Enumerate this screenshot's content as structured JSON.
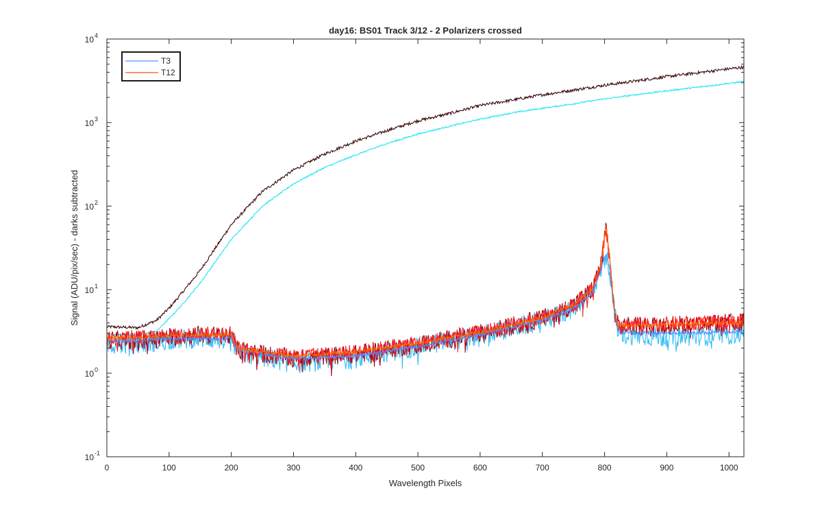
{
  "chart_data": {
    "type": "line",
    "title": "day16: BS01  Track 3/12 - 2 Polarizers crossed",
    "xlabel": "Wavelength Pixels",
    "ylabel": "Signal (ADU/pix/sec) - darks subtracted",
    "xlim": [
      0,
      1024
    ],
    "ylim": [
      0.1,
      10000
    ],
    "yscale": "log",
    "xticks": [
      0,
      100,
      200,
      300,
      400,
      500,
      600,
      700,
      800,
      900,
      1000
    ],
    "yticks": [
      0.1,
      1,
      10,
      100,
      1000,
      10000
    ],
    "ytick_labels": [
      {
        "base": "10",
        "exp": "-1"
      },
      {
        "base": "10",
        "exp": "0"
      },
      {
        "base": "10",
        "exp": "1"
      },
      {
        "base": "10",
        "exp": "2"
      },
      {
        "base": "10",
        "exp": "3"
      },
      {
        "base": "10",
        "exp": "4"
      }
    ],
    "grid": false,
    "legend_position": "top-left",
    "legend": [
      {
        "name": "T3",
        "color": "#4d94ff"
      },
      {
        "name": "T12",
        "color": "#e8590c"
      }
    ],
    "series": [
      {
        "name": "",
        "color": "#3b0a0a",
        "noise": 0.04,
        "points": [
          [
            0,
            3.6
          ],
          [
            50,
            3.5
          ],
          [
            80,
            4.3
          ],
          [
            100,
            6
          ],
          [
            120,
            9
          ],
          [
            150,
            17
          ],
          [
            200,
            60
          ],
          [
            250,
            150
          ],
          [
            300,
            270
          ],
          [
            350,
            420
          ],
          [
            400,
            600
          ],
          [
            450,
            800
          ],
          [
            500,
            1050
          ],
          [
            550,
            1280
          ],
          [
            600,
            1600
          ],
          [
            650,
            1850
          ],
          [
            700,
            2150
          ],
          [
            750,
            2450
          ],
          [
            800,
            2800
          ],
          [
            850,
            3150
          ],
          [
            900,
            3550
          ],
          [
            950,
            3950
          ],
          [
            1000,
            4400
          ],
          [
            1024,
            4600
          ]
        ]
      },
      {
        "name": "",
        "color": "#1ee5f0",
        "noise": 0.02,
        "points": [
          [
            0,
            2.9
          ],
          [
            50,
            2.9
          ],
          [
            80,
            3.2
          ],
          [
            100,
            4.5
          ],
          [
            120,
            6.5
          ],
          [
            150,
            12
          ],
          [
            200,
            40
          ],
          [
            250,
            100
          ],
          [
            300,
            185
          ],
          [
            350,
            290
          ],
          [
            400,
            410
          ],
          [
            450,
            560
          ],
          [
            500,
            730
          ],
          [
            550,
            900
          ],
          [
            600,
            1100
          ],
          [
            650,
            1300
          ],
          [
            700,
            1480
          ],
          [
            750,
            1680
          ],
          [
            800,
            1920
          ],
          [
            850,
            2150
          ],
          [
            900,
            2400
          ],
          [
            950,
            2650
          ],
          [
            1000,
            2950
          ],
          [
            1024,
            3100
          ]
        ]
      },
      {
        "name": "",
        "color": "#35bdf5",
        "noise": 0.28,
        "points": [
          [
            0,
            2.2
          ],
          [
            50,
            2.2
          ],
          [
            100,
            2.5
          ],
          [
            150,
            2.6
          ],
          [
            200,
            2.5
          ],
          [
            210,
            1.8
          ],
          [
            300,
            1.3
          ],
          [
            400,
            1.5
          ],
          [
            500,
            2.1
          ],
          [
            600,
            2.8
          ],
          [
            700,
            4.2
          ],
          [
            750,
            6
          ],
          [
            780,
            9.5
          ],
          [
            795,
            18
          ],
          [
            802,
            26
          ],
          [
            808,
            18
          ],
          [
            815,
            6
          ],
          [
            822,
            2.9
          ],
          [
            900,
            2.7
          ],
          [
            1000,
            2.9
          ],
          [
            1024,
            3
          ]
        ]
      },
      {
        "name": "",
        "color": "#b00010",
        "noise": 0.26,
        "points": [
          [
            0,
            2.5
          ],
          [
            50,
            2.5
          ],
          [
            100,
            2.7
          ],
          [
            150,
            2.9
          ],
          [
            200,
            2.8
          ],
          [
            210,
            1.9
          ],
          [
            300,
            1.5
          ],
          [
            400,
            1.7
          ],
          [
            500,
            2.2
          ],
          [
            600,
            3
          ],
          [
            700,
            4.5
          ],
          [
            750,
            6.5
          ],
          [
            780,
            10
          ],
          [
            795,
            20
          ],
          [
            802,
            58
          ],
          [
            808,
            25
          ],
          [
            815,
            6
          ],
          [
            822,
            3.6
          ],
          [
            900,
            3.8
          ],
          [
            1000,
            4
          ],
          [
            1024,
            4.1
          ]
        ]
      },
      {
        "name": "",
        "color": "#ff1f1f",
        "noise": 0.2,
        "points": [
          [
            0,
            2.7
          ],
          [
            50,
            2.7
          ],
          [
            100,
            2.8
          ],
          [
            150,
            3
          ],
          [
            200,
            2.9
          ],
          [
            210,
            2
          ],
          [
            300,
            1.6
          ],
          [
            400,
            1.8
          ],
          [
            500,
            2.3
          ],
          [
            600,
            3.1
          ],
          [
            700,
            4.6
          ],
          [
            750,
            6.5
          ],
          [
            780,
            10
          ],
          [
            795,
            20
          ],
          [
            802,
            58
          ],
          [
            808,
            25
          ],
          [
            815,
            6
          ],
          [
            822,
            3.8
          ],
          [
            900,
            3.9
          ],
          [
            1000,
            4.1
          ],
          [
            1024,
            4.2
          ]
        ]
      },
      {
        "name": "T3",
        "color": "#4d94ff",
        "noise": 0.05,
        "points": [
          [
            0,
            2.4
          ],
          [
            100,
            2.6
          ],
          [
            200,
            2.6
          ],
          [
            210,
            1.9
          ],
          [
            300,
            1.5
          ],
          [
            400,
            1.6
          ],
          [
            500,
            2.1
          ],
          [
            600,
            2.9
          ],
          [
            700,
            4.3
          ],
          [
            750,
            6
          ],
          [
            780,
            9
          ],
          [
            795,
            18
          ],
          [
            802,
            27
          ],
          [
            808,
            18
          ],
          [
            815,
            6
          ],
          [
            822,
            3.1
          ],
          [
            900,
            3
          ],
          [
            1000,
            3.1
          ],
          [
            1024,
            3.2
          ]
        ]
      },
      {
        "name": "T12",
        "color": "#ff6a00",
        "noise": 0.05,
        "points": [
          [
            0,
            2.6
          ],
          [
            100,
            2.8
          ],
          [
            200,
            2.9
          ],
          [
            210,
            2
          ],
          [
            300,
            1.6
          ],
          [
            400,
            1.8
          ],
          [
            500,
            2.3
          ],
          [
            600,
            3.1
          ],
          [
            700,
            4.6
          ],
          [
            750,
            6.6
          ],
          [
            780,
            10
          ],
          [
            795,
            21
          ],
          [
            802,
            60
          ],
          [
            808,
            26
          ],
          [
            815,
            6
          ],
          [
            822,
            3.7
          ],
          [
            900,
            3.8
          ],
          [
            1000,
            4
          ],
          [
            1024,
            4.1
          ]
        ]
      }
    ]
  }
}
